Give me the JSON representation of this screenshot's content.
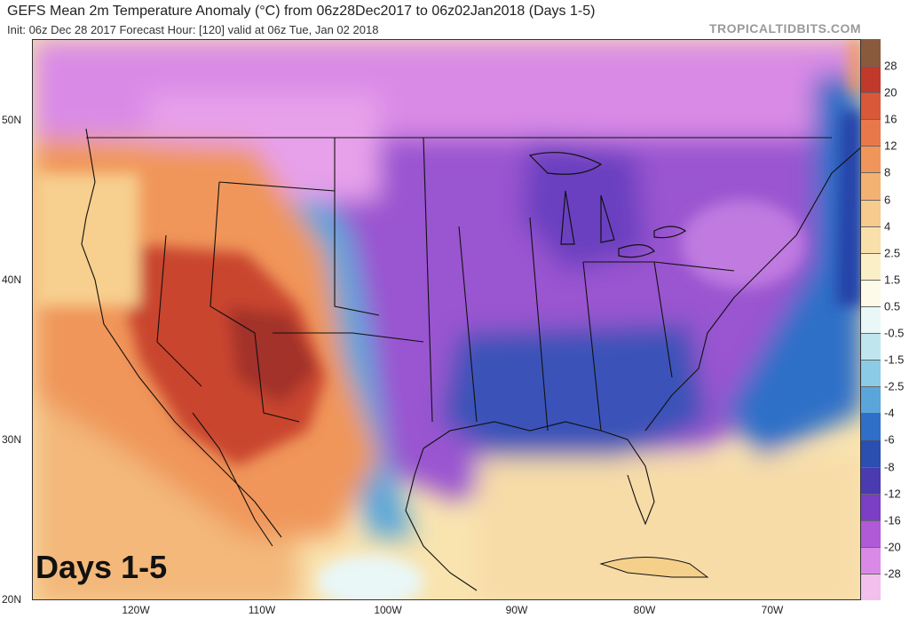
{
  "header": {
    "title": "GEFS Mean 2m Temperature Anomaly (°C) from 06z28Dec2017 to 06z02Jan2018 (Days 1-5)",
    "subtitle": "Init: 06z Dec 28 2017   Forecast Hour: [120]   valid at 06z Tue, Jan 02 2018",
    "brand": "TROPICALTIDBITS.COM"
  },
  "map": {
    "days_label": "Days 1-5",
    "lat_labels": [
      "50N",
      "40N",
      "30N",
      "20N"
    ],
    "lon_labels": [
      "120W",
      "110W",
      "100W",
      "90W",
      "80W",
      "70W"
    ]
  },
  "colorbar": {
    "labels": [
      "28",
      "20",
      "16",
      "12",
      "8",
      "6",
      "4",
      "2.5",
      "1.5",
      "0.5",
      "-0.5",
      "-1.5",
      "-2.5",
      "-4",
      "-6",
      "-8",
      "-12",
      "-16",
      "-20",
      "-28"
    ],
    "colors": [
      "#8a5a3c",
      "#c0392b",
      "#d9583a",
      "#e8784a",
      "#f0965a",
      "#f4b272",
      "#f7ca8e",
      "#f9dfaa",
      "#fbefc8",
      "#fefaea",
      "#e9f7f7",
      "#bfe6ef",
      "#8ccbe6",
      "#5aa6da",
      "#2f6fc8",
      "#2a4fb0",
      "#4b3bb0",
      "#7a3fc4",
      "#b05ad8",
      "#d98ae6",
      "#f3c0ee"
    ]
  }
}
